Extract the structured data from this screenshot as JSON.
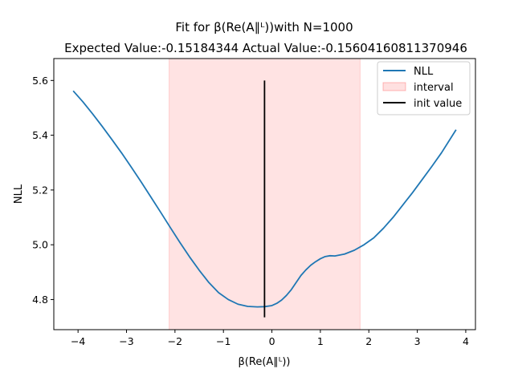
{
  "chart_data": {
    "type": "line",
    "title_line1": "Fit for β(Re(A∥ᴸ))with N=1000",
    "title_line2": "Expected Value:-0.15184344 Actual Value:-0.15604160811370946",
    "xlabel": "β(Re(A∥ᴸ))",
    "ylabel": "NLL",
    "xlim": [
      -4.5,
      4.2
    ],
    "ylim": [
      4.69,
      5.68
    ],
    "x_ticks": [
      -4,
      -3,
      -2,
      -1,
      0,
      1,
      2,
      3,
      4
    ],
    "x_tick_labels": [
      "−4",
      "−3",
      "−2",
      "−1",
      "0",
      "1",
      "2",
      "3",
      "4"
    ],
    "y_ticks": [
      4.8,
      5.0,
      5.2,
      5.4,
      5.6
    ],
    "y_tick_labels": [
      "4.8",
      "5.0",
      "5.2",
      "5.4",
      "5.6"
    ],
    "grid": false,
    "legend_position": "top-right",
    "series": [
      {
        "name": "NLL",
        "color": "#1f77b4",
        "x": [
          -4.1,
          -3.9,
          -3.7,
          -3.5,
          -3.3,
          -3.1,
          -2.9,
          -2.7,
          -2.5,
          -2.3,
          -2.1,
          -1.9,
          -1.7,
          -1.5,
          -1.3,
          -1.1,
          -0.9,
          -0.7,
          -0.5,
          -0.3,
          -0.15,
          0.0,
          0.1,
          0.2,
          0.3,
          0.4,
          0.5,
          0.6,
          0.7,
          0.8,
          0.9,
          1.0,
          1.1,
          1.2,
          1.3,
          1.5,
          1.7,
          1.9,
          2.1,
          2.3,
          2.5,
          2.7,
          2.9,
          3.1,
          3.3,
          3.5,
          3.8
        ],
        "y": [
          5.562,
          5.522,
          5.478,
          5.432,
          5.384,
          5.335,
          5.283,
          5.23,
          5.175,
          5.12,
          5.064,
          5.009,
          4.956,
          4.907,
          4.862,
          4.825,
          4.8,
          4.783,
          4.775,
          4.773,
          4.774,
          4.778,
          4.786,
          4.798,
          4.815,
          4.836,
          4.862,
          4.888,
          4.908,
          4.925,
          4.938,
          4.949,
          4.957,
          4.96,
          4.959,
          4.966,
          4.98,
          5.0,
          5.025,
          5.06,
          5.1,
          5.145,
          5.19,
          5.238,
          5.286,
          5.336,
          5.42
        ]
      },
      {
        "name": "interval",
        "color": "#ff0000",
        "range": [
          -2.12,
          1.82
        ]
      },
      {
        "name": "init value",
        "color": "#000000",
        "x": -0.152,
        "y_range": [
          4.735,
          5.6
        ]
      }
    ]
  }
}
